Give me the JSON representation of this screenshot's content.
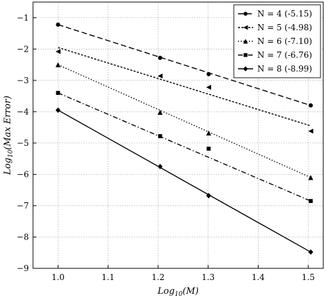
{
  "chart_data": {
    "type": "line",
    "xlabel": "Log10(M)",
    "ylabel": "Log10(Max Error)",
    "xlim": [
      0.95,
      1.53
    ],
    "ylim": [
      -9,
      -0.5
    ],
    "xticks": [
      1.0,
      1.1,
      1.2,
      1.3,
      1.4,
      1.5
    ],
    "xtick_labels": [
      "1.0",
      "1.1",
      "1.2",
      "1.3",
      "1.4",
      "1.5"
    ],
    "yticks": [
      -9,
      -8,
      -7,
      -6,
      -5,
      -4,
      -3,
      -2,
      -1
    ],
    "ytick_labels": [
      "−9",
      "−8",
      "−7",
      "−6",
      "−5",
      "−4",
      "−3",
      "−2",
      "−1"
    ],
    "grid": true,
    "legend_position": "top-right",
    "series": [
      {
        "name": "N = 4 (-5.15)",
        "marker": "circle",
        "dash": "dashed",
        "points": [
          [
            1.0,
            -1.22
          ],
          [
            1.204,
            -2.28
          ],
          [
            1.301,
            -2.8
          ],
          [
            1.505,
            -3.8
          ]
        ],
        "fit": [
          [
            1.0,
            -1.22
          ],
          [
            1.505,
            -3.8
          ]
        ]
      },
      {
        "name": "N = 5 (-4.98)",
        "marker": "triangle-left",
        "dash": "dotted-dense",
        "points": [
          [
            1.0,
            -2.08
          ],
          [
            1.204,
            -2.86
          ],
          [
            1.301,
            -3.22
          ],
          [
            1.505,
            -4.62
          ]
        ],
        "fit": [
          [
            1.0,
            -1.95
          ],
          [
            1.505,
            -4.45
          ]
        ]
      },
      {
        "name": "N = 6 (-7.10)",
        "marker": "triangle-up",
        "dash": "dotted",
        "points": [
          [
            1.0,
            -2.5
          ],
          [
            1.204,
            -4.02
          ],
          [
            1.301,
            -4.68
          ],
          [
            1.505,
            -6.1
          ]
        ],
        "fit": [
          [
            1.0,
            -2.5
          ],
          [
            1.505,
            -6.1
          ]
        ]
      },
      {
        "name": "N = 7 (-6.76)",
        "marker": "square",
        "dash": "dashdot",
        "points": [
          [
            1.0,
            -3.4
          ],
          [
            1.204,
            -4.78
          ],
          [
            1.301,
            -5.18
          ],
          [
            1.505,
            -6.85
          ]
        ],
        "fit": [
          [
            1.0,
            -3.4
          ],
          [
            1.505,
            -6.85
          ]
        ]
      },
      {
        "name": "N = 8 (-8.99)",
        "marker": "diamond",
        "dash": "solid",
        "points": [
          [
            1.0,
            -3.95
          ],
          [
            1.204,
            -5.75
          ],
          [
            1.301,
            -6.68
          ],
          [
            1.505,
            -8.48
          ]
        ],
        "fit": [
          [
            1.0,
            -3.95
          ],
          [
            1.505,
            -8.48
          ]
        ]
      }
    ]
  }
}
